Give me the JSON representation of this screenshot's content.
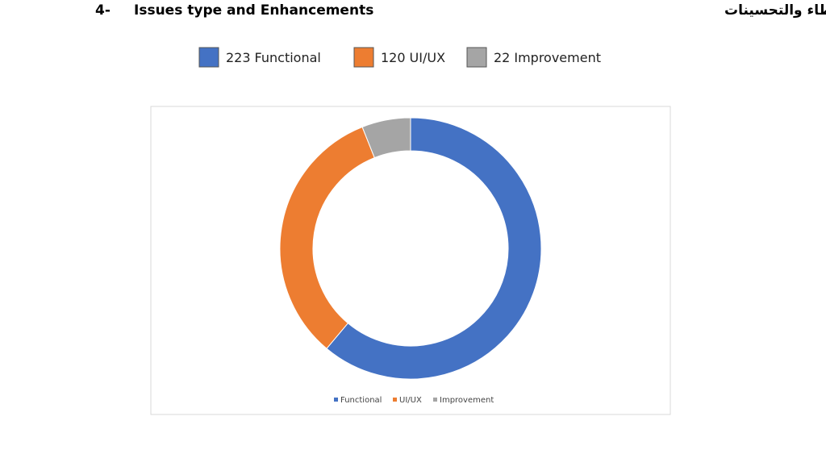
{
  "header": {
    "number": "4-",
    "title": "Issues type and Enhancements",
    "title_ar": "الأخطاء والتحسينات"
  },
  "chart_data": {
    "type": "donut",
    "categories": [
      "Functional",
      "UI/UX",
      "Improvement"
    ],
    "values": [
      223,
      120,
      22
    ],
    "colors": [
      "#4472c4",
      "#ed7d31",
      "#a5a5a5"
    ],
    "legend": "bottom"
  }
}
